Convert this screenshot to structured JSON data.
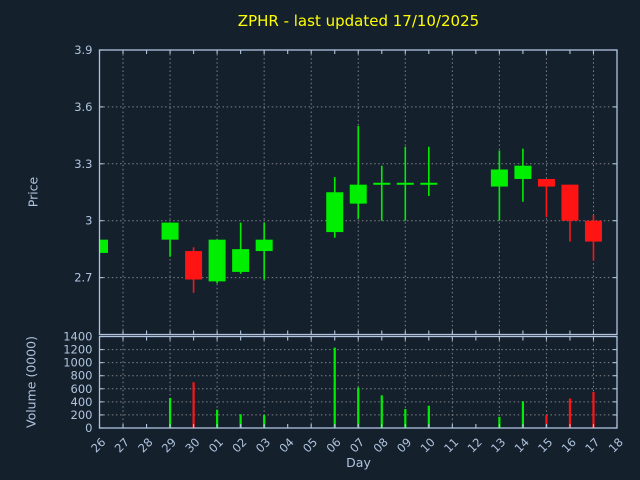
{
  "title": "ZPHR - last updated 17/10/2025",
  "chart_data": {
    "type": "candlestick",
    "xlabel": "Day",
    "legend": "none",
    "grid": "dotted gray; vertical gridline every 2nd day; horizontal at each price/volume tick",
    "x_ticklabels": [
      "26",
      "27",
      "28",
      "29",
      "30",
      "01",
      "02",
      "03",
      "04",
      "05",
      "06",
      "07",
      "08",
      "09",
      "10",
      "11",
      "12",
      "13",
      "14",
      "15",
      "16",
      "17",
      "18"
    ],
    "price_panel": {
      "ylabel": "Price",
      "ylim": [
        2.4,
        3.9
      ],
      "yticks": [
        {
          "value": 2.7,
          "label": "2.7"
        },
        {
          "value": 3.0,
          "label": "3"
        },
        {
          "value": 3.3,
          "label": "3.3"
        },
        {
          "value": 3.6,
          "label": "3.6"
        },
        {
          "value": 3.9,
          "label": "3.9"
        }
      ]
    },
    "volume_panel": {
      "ylabel": "Volume (0000)",
      "ylim": [
        0,
        1400
      ],
      "yticks": [
        {
          "value": 0,
          "label": "0"
        },
        {
          "value": 200,
          "label": "200"
        },
        {
          "value": 400,
          "label": "400"
        },
        {
          "value": 600,
          "label": "600"
        },
        {
          "value": 800,
          "label": "800"
        },
        {
          "value": 1000,
          "label": "1000"
        },
        {
          "value": 1200,
          "label": "1200"
        },
        {
          "value": 1400,
          "label": "1400"
        }
      ]
    },
    "candles": [
      {
        "day": "26",
        "x_index": 0,
        "open": 2.83,
        "high": 2.9,
        "low": 2.83,
        "close": 2.9,
        "volume": 0,
        "direction": "up"
      },
      {
        "day": "29",
        "x_index": 3,
        "open": 2.9,
        "high": 2.99,
        "low": 2.81,
        "close": 2.99,
        "volume": 460,
        "direction": "up"
      },
      {
        "day": "30",
        "x_index": 4,
        "open": 2.84,
        "high": 2.86,
        "low": 2.62,
        "close": 2.69,
        "volume": 700,
        "direction": "down"
      },
      {
        "day": "01",
        "x_index": 5,
        "open": 2.68,
        "high": 2.9,
        "low": 2.67,
        "close": 2.9,
        "volume": 280,
        "direction": "up"
      },
      {
        "day": "02",
        "x_index": 6,
        "open": 2.73,
        "high": 2.99,
        "low": 2.72,
        "close": 2.85,
        "volume": 210,
        "direction": "up"
      },
      {
        "day": "03",
        "x_index": 7,
        "open": 2.84,
        "high": 2.99,
        "low": 2.69,
        "close": 2.9,
        "volume": 200,
        "direction": "up"
      },
      {
        "day": "06",
        "x_index": 10,
        "open": 2.94,
        "high": 3.23,
        "low": 2.91,
        "close": 3.15,
        "volume": 1230,
        "direction": "up"
      },
      {
        "day": "07",
        "x_index": 11,
        "open": 3.09,
        "high": 3.5,
        "low": 3.01,
        "close": 3.19,
        "volume": 620,
        "direction": "up"
      },
      {
        "day": "08",
        "x_index": 12,
        "open": 3.19,
        "high": 3.29,
        "low": 3.0,
        "close": 3.2,
        "volume": 500,
        "direction": "up"
      },
      {
        "day": "09",
        "x_index": 13,
        "open": 3.19,
        "high": 3.39,
        "low": 3.0,
        "close": 3.2,
        "volume": 290,
        "direction": "up"
      },
      {
        "day": "10",
        "x_index": 14,
        "open": 3.19,
        "high": 3.39,
        "low": 3.13,
        "close": 3.2,
        "volume": 340,
        "direction": "up"
      },
      {
        "day": "13",
        "x_index": 17,
        "open": 3.18,
        "high": 3.37,
        "low": 3.0,
        "close": 3.27,
        "volume": 170,
        "direction": "up"
      },
      {
        "day": "14",
        "x_index": 18,
        "open": 3.22,
        "high": 3.38,
        "low": 3.1,
        "close": 3.29,
        "volume": 410,
        "direction": "up"
      },
      {
        "day": "15",
        "x_index": 19,
        "open": 3.22,
        "high": 3.22,
        "low": 3.02,
        "close": 3.18,
        "volume": 200,
        "direction": "down"
      },
      {
        "day": "16",
        "x_index": 20,
        "open": 3.19,
        "high": 3.19,
        "low": 2.89,
        "close": 3.0,
        "volume": 450,
        "direction": "down"
      },
      {
        "day": "17",
        "x_index": 21,
        "open": 3.0,
        "high": 3.03,
        "low": 2.79,
        "close": 2.89,
        "volume": 550,
        "direction": "down"
      }
    ],
    "colors": {
      "background": "#15202d",
      "axis": "#b0c4de",
      "title": "#ffff00",
      "up": "#00ee00",
      "down": "#ff1414",
      "grid": "#9b9b9b"
    }
  }
}
